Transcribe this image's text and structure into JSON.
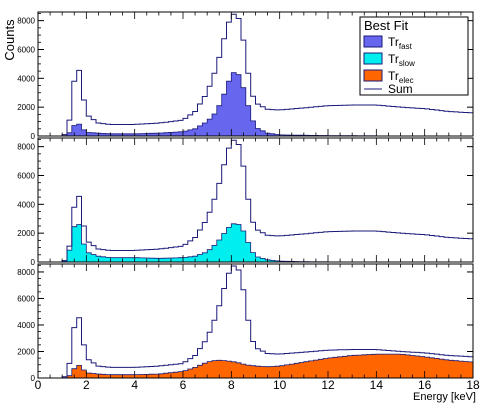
{
  "chart_data": {
    "type": "area",
    "ylabel": "Counts",
    "xlabel": "Energy [keV]",
    "xlim": [
      0,
      18
    ],
    "x_ticks": [
      "0",
      "2",
      "4",
      "6",
      "8",
      "10",
      "12",
      "14",
      "16",
      "18"
    ],
    "y_ticks": [
      "0",
      "2000",
      "4000",
      "6000",
      "8000"
    ],
    "legend": {
      "title": "Best Fit",
      "placement": "top-right",
      "entries": [
        {
          "base": "Tr",
          "sub": "fast",
          "color": "#6666ee"
        },
        {
          "base": "Tr",
          "sub": "slow",
          "color": "#00eeee"
        },
        {
          "base": "Tr",
          "sub": "elec",
          "color": "#ff6600"
        },
        {
          "base": "Sum",
          "sub": "",
          "color": "#1a1a7a"
        }
      ]
    },
    "sum_line_color": "#1a1a7a",
    "x": [
      1.0,
      1.2,
      1.4,
      1.6,
      1.8,
      2.0,
      2.5,
      3.0,
      3.5,
      4.0,
      5.0,
      6.0,
      6.5,
      7.0,
      7.4,
      7.8,
      8.0,
      8.2,
      8.4,
      8.6,
      8.8,
      9.0,
      9.5,
      10.0,
      11.0,
      12.0,
      13.0,
      14.0,
      15.0,
      16.0,
      17.0,
      18.0
    ],
    "sum": [
      0,
      200,
      2000,
      5600,
      3500,
      1500,
      900,
      800,
      800,
      800,
      900,
      1100,
      1700,
      3000,
      4800,
      7400,
      8400,
      8500,
      7800,
      5500,
      3200,
      2300,
      1850,
      1800,
      1950,
      2100,
      2150,
      2150,
      2000,
      1900,
      1700,
      1600
    ],
    "panels": [
      {
        "name": "Tr_fast",
        "color": "#6666ee",
        "values": [
          0,
          50,
          400,
          1050,
          600,
          250,
          200,
          150,
          150,
          150,
          200,
          300,
          500,
          1000,
          1700,
          3300,
          4300,
          4500,
          4000,
          2700,
          1500,
          600,
          200,
          80,
          50,
          30,
          20,
          10,
          0,
          0,
          0,
          0
        ]
      },
      {
        "name": "Tr_slow",
        "color": "#00eeee",
        "values": [
          0,
          150,
          1500,
          3400,
          1800,
          700,
          400,
          300,
          300,
          300,
          250,
          300,
          400,
          700,
          1300,
          2200,
          2600,
          2700,
          2500,
          1800,
          900,
          400,
          150,
          60,
          20,
          10,
          0,
          0,
          0,
          0,
          0,
          0
        ]
      },
      {
        "name": "Tr_elec",
        "color": "#ff6600",
        "values": [
          0,
          50,
          300,
          1100,
          800,
          400,
          300,
          250,
          250,
          250,
          300,
          500,
          800,
          1200,
          1350,
          1300,
          1250,
          1200,
          1100,
          1000,
          950,
          900,
          850,
          900,
          1200,
          1500,
          1700,
          1800,
          1800,
          1600,
          1350,
          1200
        ]
      }
    ]
  }
}
